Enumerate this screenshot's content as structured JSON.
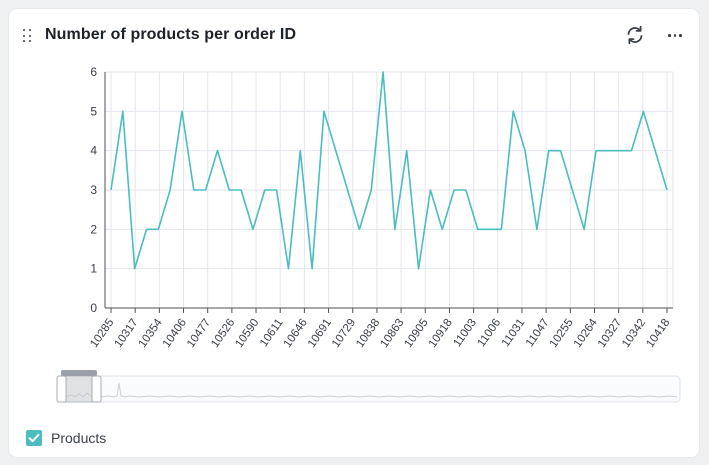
{
  "widget": {
    "title": "Number of products per order ID",
    "refresh_icon": "refresh-icon",
    "more_icon": "more-horizontal-icon",
    "drag_icon": "drag-handle-icon"
  },
  "legend": {
    "label": "Products",
    "checked": true
  },
  "colors": {
    "series": "#4bbdc0",
    "grid": "#e4e6ee",
    "axis": "#4c5058"
  },
  "chart_data": {
    "type": "line",
    "ylim": [
      0,
      6
    ],
    "yticks": [
      0,
      1,
      2,
      3,
      4,
      5,
      6
    ],
    "grid": true,
    "x_tick_labels": [
      "10285",
      "10317",
      "10354",
      "10406",
      "10477",
      "10526",
      "10590",
      "10611",
      "10646",
      "10691",
      "10729",
      "10838",
      "10863",
      "10905",
      "10918",
      "11003",
      "11006",
      "11031",
      "11047",
      "10255",
      "10264",
      "10327",
      "10342",
      "10418"
    ],
    "series": [
      {
        "name": "Products",
        "values": [
          3,
          5,
          1,
          2,
          2,
          3,
          5,
          3,
          3,
          4,
          3,
          3,
          2,
          3,
          3,
          1,
          4,
          1,
          5,
          4,
          3,
          2,
          3,
          6,
          2,
          4,
          1,
          3,
          2,
          3,
          3,
          2,
          2,
          2,
          5,
          4,
          2,
          4,
          4,
          3,
          2,
          4,
          4,
          4,
          4,
          5,
          4,
          3
        ]
      }
    ]
  }
}
